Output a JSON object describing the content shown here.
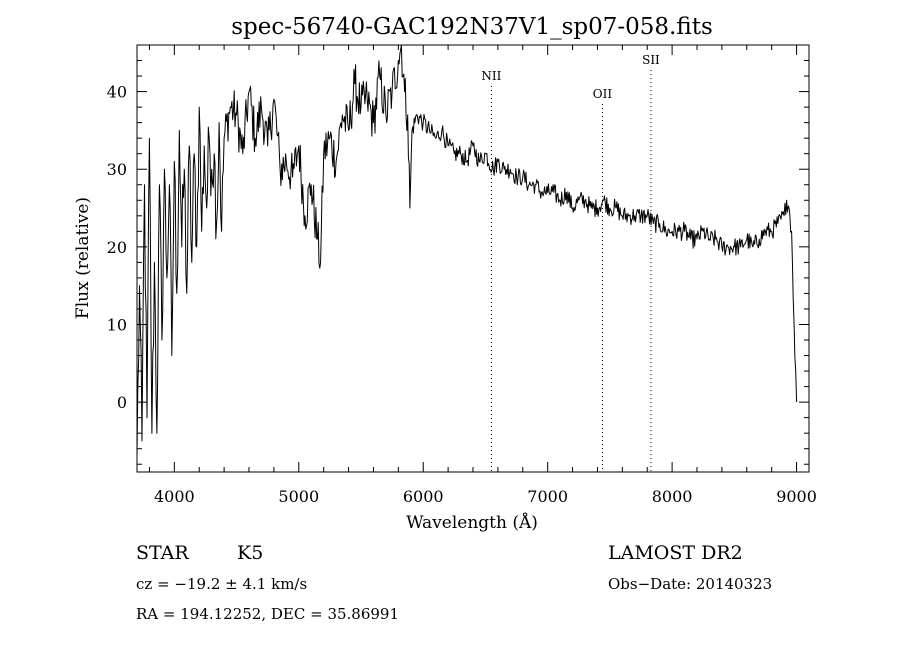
{
  "chart_data": {
    "type": "line",
    "title": "spec-56740-GAC192N37V1_sp07-058.fits",
    "xlabel": "Wavelength (Å)",
    "ylabel": "Flux (relative)",
    "xlim": [
      3700,
      9100
    ],
    "ylim": [
      -9,
      46
    ],
    "x_ticks": [
      4000,
      5000,
      6000,
      7000,
      8000,
      9000
    ],
    "x_tick_labels": [
      "4000",
      "5000",
      "6000",
      "7000",
      "8000",
      "9000"
    ],
    "y_ticks": [
      0,
      10,
      20,
      30,
      40
    ],
    "y_tick_labels": [
      "0",
      "10",
      "20",
      "30",
      "40"
    ],
    "grid": false,
    "line_color": "#000000",
    "line_markers": [
      {
        "label": "NII",
        "wavelength": 6548
      },
      {
        "label": "OII",
        "wavelength": 7440
      },
      {
        "label": "SII",
        "wavelength": 7830
      }
    ],
    "series": [
      {
        "x": [
          3700,
          3720,
          3740,
          3760,
          3780,
          3800,
          3820,
          3840,
          3860,
          3880,
          3900,
          3920,
          3940,
          3960,
          3980,
          4000,
          4020,
          4040,
          4060,
          4080,
          4100,
          4120,
          4140,
          4160,
          4180,
          4200,
          4220,
          4240,
          4260,
          4280,
          4300,
          4320,
          4340,
          4360,
          4380,
          4400,
          4450,
          4500,
          4550,
          4600,
          4650,
          4700,
          4750,
          4800,
          4850,
          4900,
          4950,
          5000,
          5050,
          5100,
          5150,
          5175,
          5200,
          5250,
          5300,
          5350,
          5400,
          5450,
          5500,
          5550,
          5600,
          5650,
          5700,
          5750,
          5800,
          5825,
          5850,
          5875,
          5893,
          5910,
          5950,
          6000,
          6050,
          6100,
          6150,
          6200,
          6250,
          6300,
          6350,
          6400,
          6450,
          6500,
          6563,
          6600,
          6650,
          6700,
          6750,
          6800,
          6850,
          6900,
          6950,
          7000,
          7050,
          7100,
          7150,
          7200,
          7250,
          7300,
          7350,
          7400,
          7450,
          7500,
          7550,
          7600,
          7650,
          7700,
          7750,
          7800,
          7850,
          7900,
          7950,
          8000,
          8050,
          8100,
          8150,
          8200,
          8250,
          8300,
          8350,
          8400,
          8450,
          8500,
          8550,
          8600,
          8650,
          8700,
          8750,
          8800,
          8850,
          8900,
          8920,
          8940,
          8960,
          8980,
          9000
        ],
        "y": [
          -7,
          15,
          -5,
          28,
          -2,
          34,
          -4,
          18,
          -4,
          28,
          8,
          30,
          16,
          28,
          6,
          31,
          14,
          35,
          20,
          30,
          14,
          33,
          18,
          32,
          20,
          38,
          22,
          33,
          25,
          34,
          30,
          32,
          23,
          36,
          22,
          34,
          38,
          37,
          32,
          40,
          34,
          38,
          33,
          39,
          30,
          31,
          29,
          33,
          24,
          28,
          21,
          18,
          32,
          34,
          31,
          37,
          35,
          41,
          38,
          39,
          36,
          42,
          37,
          40,
          44,
          46,
          40,
          37,
          25,
          35,
          37,
          36,
          35,
          34,
          35,
          33,
          32,
          32,
          31,
          33,
          31,
          32,
          30,
          31,
          30,
          30,
          29,
          29,
          28,
          28,
          27,
          27,
          27,
          26,
          27,
          25,
          26,
          26,
          25,
          25,
          26,
          25,
          25,
          24,
          24,
          24,
          24,
          24,
          23,
          23,
          22,
          22,
          22,
          22,
          21,
          21,
          22,
          21,
          21,
          20,
          20,
          20,
          20,
          21,
          20,
          21,
          22,
          22,
          23,
          24,
          26,
          25,
          22,
          10,
          0
        ]
      }
    ],
    "annotations": {
      "object_class": "STAR",
      "subclass": "K5",
      "survey": "LAMOST DR2",
      "cz": "cz = −19.2 ± 4.1 km/s",
      "obs_date": "Obs−Date: 20140323",
      "coords": "RA = 194.12252, DEC =  35.86991"
    }
  }
}
